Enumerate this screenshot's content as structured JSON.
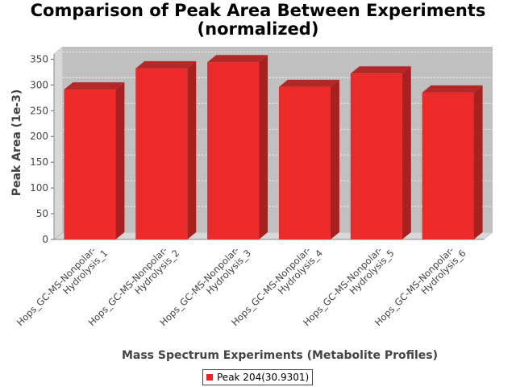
{
  "chart_data": {
    "type": "bar",
    "title": "Comparison of Peak Area Between Experiments\n(normalized)",
    "title_lines": [
      "Comparison of Peak Area Between Experiments",
      "(normalized)"
    ],
    "xlabel": "Mass Spectrum Experiments (Metabolite Profiles)",
    "ylabel": "Peak Area (1e-3)",
    "ylim": [
      0,
      360
    ],
    "yticks": [
      0,
      50,
      100,
      150,
      200,
      250,
      300,
      350
    ],
    "categories": [
      [
        "Hops_GC-MS-Nonpolar-",
        "Hydrolysis_1"
      ],
      [
        "Hops_GC-MS-Nonpolar-",
        "Hydrolysis_2"
      ],
      [
        "Hops_GC-MS-Nonpolar-",
        "Hydrolysis_3"
      ],
      [
        "Hops_GC-MS-Nonpolar-",
        "Hydrolysis_4"
      ],
      [
        "Hops_GC-MS-Nonpolar-",
        "Hydrolysis_5"
      ],
      [
        "Hops_GC-MS-Nonpolar-",
        "Hydrolysis_6"
      ]
    ],
    "series": [
      {
        "name": "Peak 204(30.9301)",
        "values": [
          291,
          332,
          344,
          296,
          322,
          285
        ]
      }
    ],
    "grid": true,
    "legend": "bottom-center",
    "colors": {
      "bar": "#ee2222",
      "plot_bg": "#c0c0c0",
      "wall": "#d8d8d8"
    }
  }
}
